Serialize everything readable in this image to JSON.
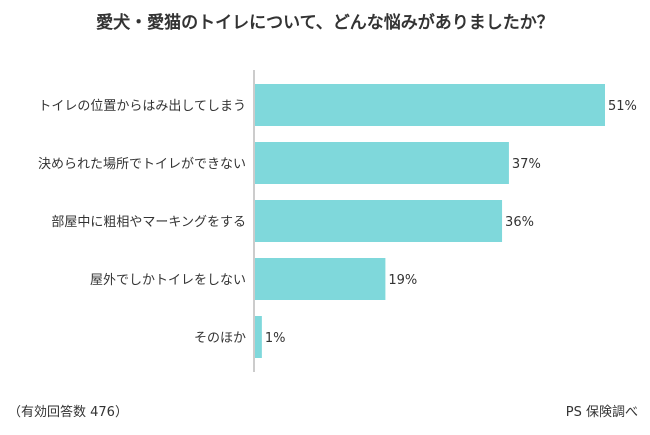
{
  "chart_data": {
    "type": "bar",
    "orientation": "horizontal",
    "title": "愛犬・愛猫のトイレについて、どんな悩みがありましたか？",
    "categories": [
      "トイレの位置からはみ出してしまう",
      "決められた場所でトイレができない",
      "部屋中に粗相やマーキングをする",
      "屋外でしかトイレをしない",
      "そのほか"
    ],
    "values": [
      51,
      37,
      36,
      19,
      1
    ],
    "value_labels": [
      "51%",
      "37%",
      "36%",
      "19%",
      "1%"
    ],
    "unit": "%",
    "xlim": [
      0,
      51
    ],
    "bar_color": "#7fd8db",
    "axis_color": "#999999",
    "grid": false
  },
  "footer": {
    "note": "（有効回答数 476）",
    "source": "PS 保険調べ"
  }
}
